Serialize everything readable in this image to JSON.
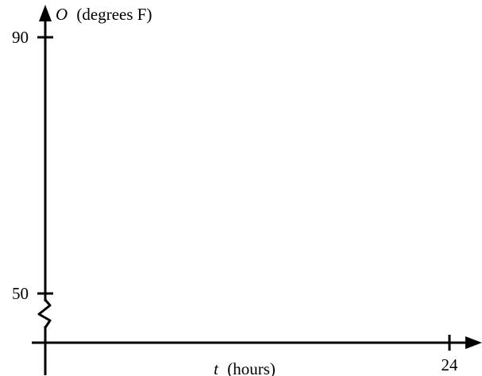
{
  "chart_data": {
    "type": "line",
    "ylabel_symbol": "O",
    "ylabel_unit": "(degrees F)",
    "xlabel_symbol": "t",
    "xlabel_unit": "(hours)",
    "ylim": [
      50,
      90
    ],
    "xlim": [
      0,
      24
    ],
    "y_ticks": [
      {
        "value": 90,
        "label": "90"
      },
      {
        "value": 50,
        "label": "50"
      }
    ],
    "x_ticks": [
      {
        "value": 24,
        "label": "24"
      }
    ],
    "y_axis_break": true,
    "grid": false,
    "series": []
  },
  "colors": {
    "axis": "#000000",
    "background": "#ffffff"
  }
}
